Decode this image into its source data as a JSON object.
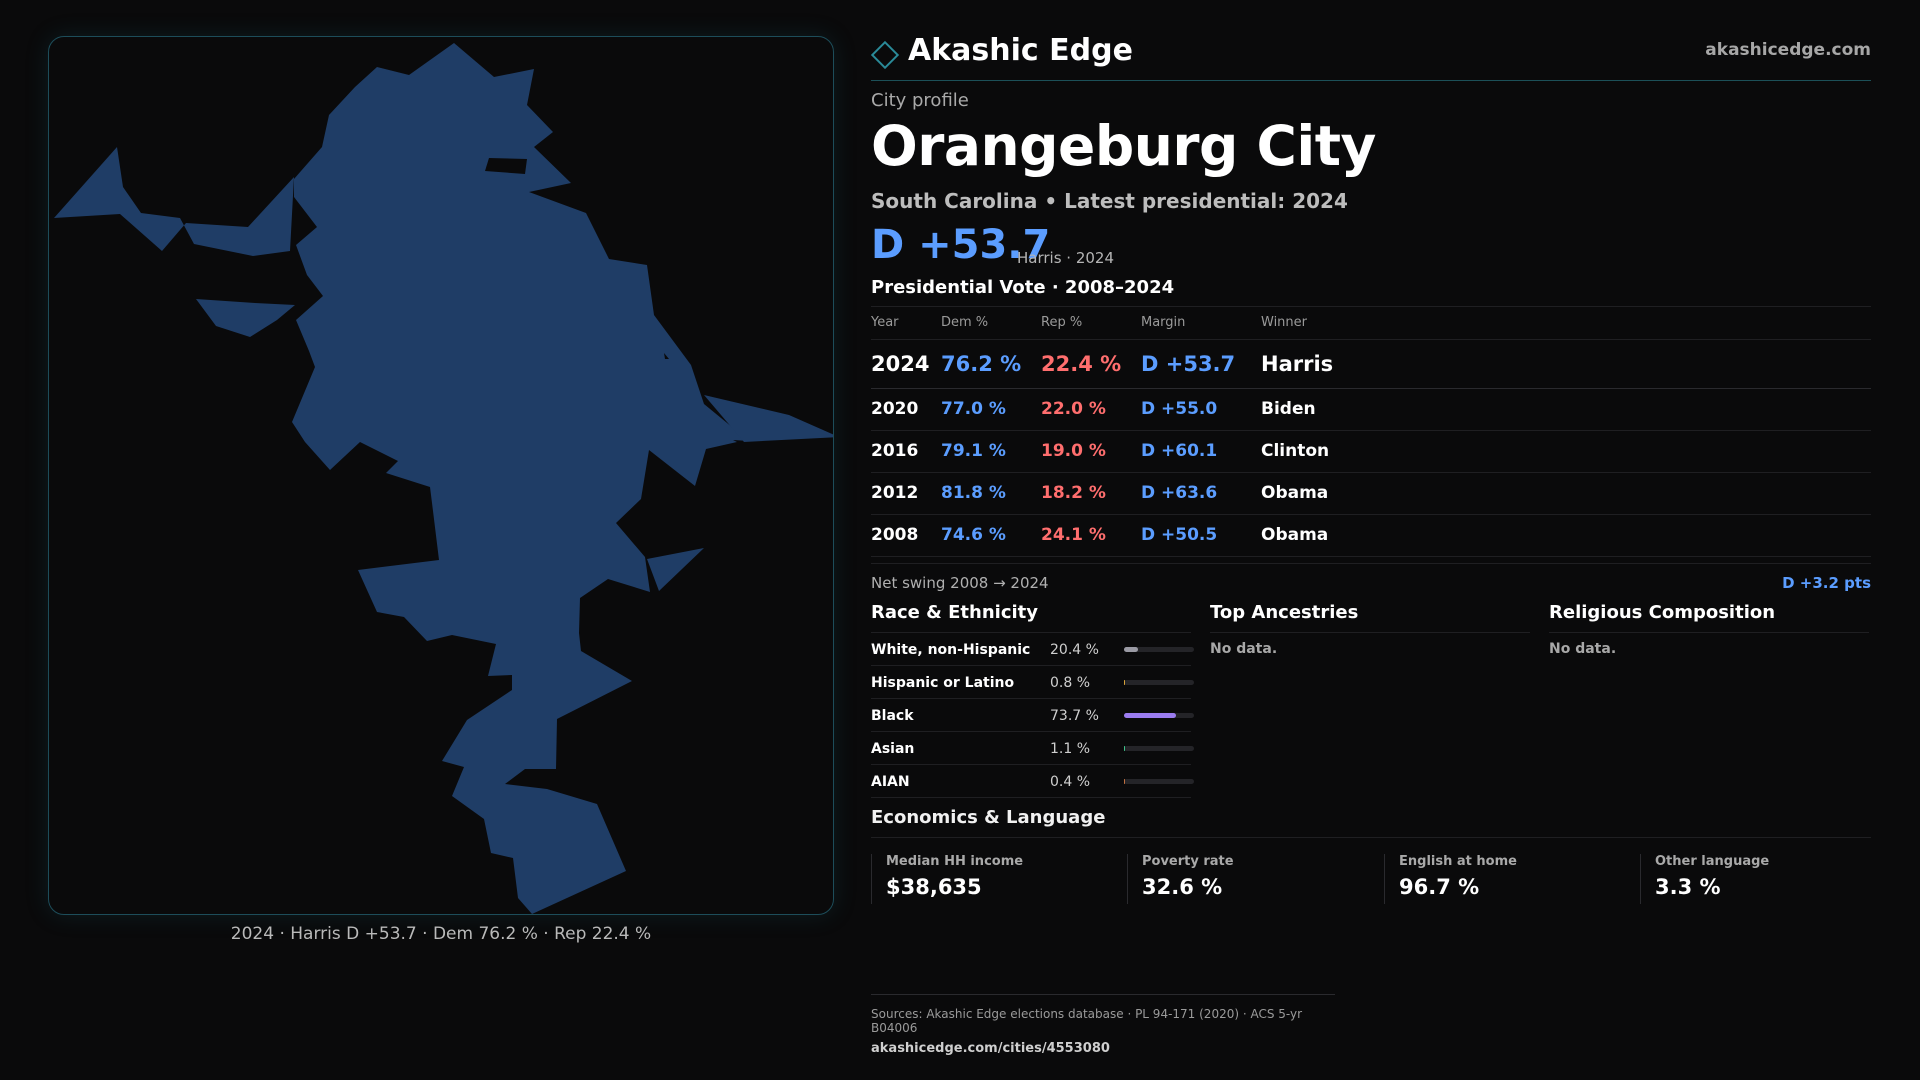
{
  "map": {
    "caption": "2024 · Harris D +53.7 · Dem 76.2 % · Rep 22.4 %",
    "fill_color": "#1f3d66"
  },
  "brand": {
    "name": "Akashic Edge",
    "domain": "akashicedge.com"
  },
  "profile": {
    "eyebrow": "City profile",
    "title": "Orangeburg City",
    "subtitle": "South Carolina • Latest presidential: 2024",
    "margin": "D +53.7",
    "margin_meta": "Harris · 2024"
  },
  "vote": {
    "title": "Presidential Vote · 2008–2024",
    "headers": {
      "year": "Year",
      "dem": "Dem %",
      "rep": "Rep %",
      "margin": "Margin",
      "winner": "Winner"
    },
    "rows": [
      {
        "year": "2024",
        "dem": "76.2 %",
        "rep": "22.4 %",
        "margin": "D +53.7",
        "winner": "Harris"
      },
      {
        "year": "2020",
        "dem": "77.0 %",
        "rep": "22.0 %",
        "margin": "D +55.0",
        "winner": "Biden"
      },
      {
        "year": "2016",
        "dem": "79.1 %",
        "rep": "19.0 %",
        "margin": "D +60.1",
        "winner": "Clinton"
      },
      {
        "year": "2012",
        "dem": "81.8 %",
        "rep": "18.2 %",
        "margin": "D +63.6",
        "winner": "Obama"
      },
      {
        "year": "2008",
        "dem": "74.6 %",
        "rep": "24.1 %",
        "margin": "D +50.5",
        "winner": "Obama"
      }
    ],
    "swing_label": "Net swing 2008 → 2024",
    "swing_value": "D +3.2 pts"
  },
  "race": {
    "title": "Race & Ethnicity",
    "rows": [
      {
        "label": "White, non-Hispanic",
        "pct": "20.4 %",
        "value": 20.4,
        "color": "#9a9aa4"
      },
      {
        "label": "Hispanic or Latino",
        "pct": "0.8 %",
        "value": 0.8,
        "color": "#d8a33a"
      },
      {
        "label": "Black",
        "pct": "73.7 %",
        "value": 73.7,
        "color": "#9b7cf0"
      },
      {
        "label": "Asian",
        "pct": "1.1 %",
        "value": 1.1,
        "color": "#3fc28a"
      },
      {
        "label": "AIAN",
        "pct": "0.4 %",
        "value": 0.4,
        "color": "#c07040"
      }
    ]
  },
  "ancestries": {
    "title": "Top Ancestries",
    "empty": "No data."
  },
  "religion": {
    "title": "Religious Composition",
    "empty": "No data."
  },
  "economics": {
    "title": "Economics & Language",
    "stats": [
      {
        "label": "Median HH income",
        "value": "$38,635"
      },
      {
        "label": "Poverty rate",
        "value": "32.6 %"
      },
      {
        "label": "English at home",
        "value": "96.7 %"
      },
      {
        "label": "Other language",
        "value": "3.3 %"
      }
    ]
  },
  "footer": {
    "sources": "Sources: Akashic Edge elections database · PL 94-171 (2020) · ACS 5-yr B04006",
    "url": "akashicedge.com/cities/4553080"
  }
}
